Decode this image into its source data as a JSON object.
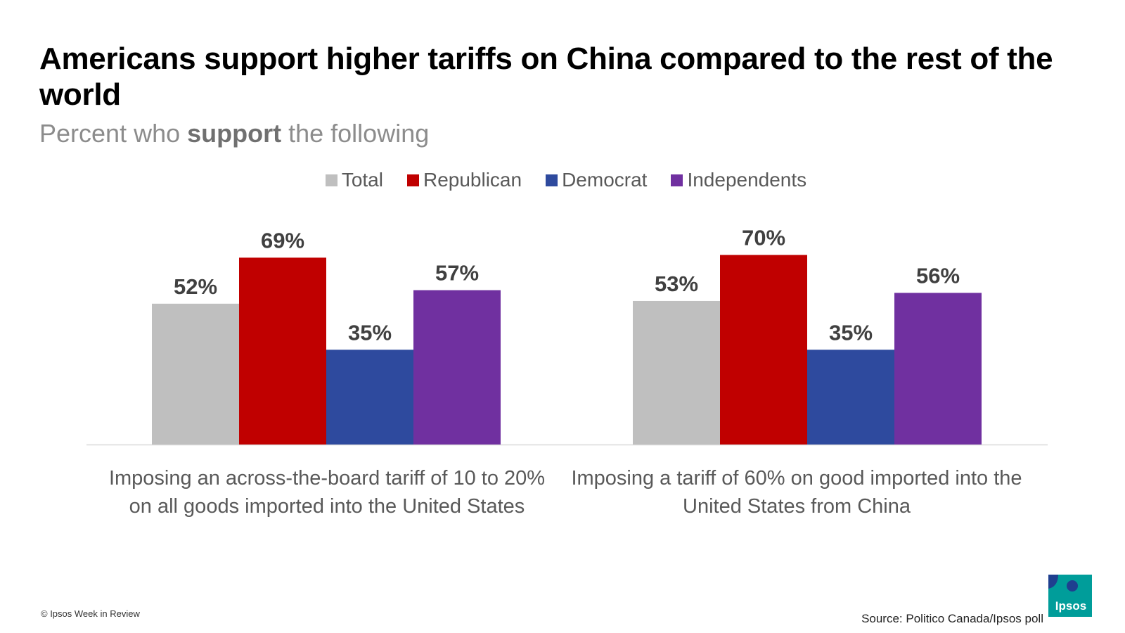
{
  "title": "Americans support higher tariffs on China compared to the rest of the world",
  "subtitle": {
    "pre": "Percent who ",
    "bold": "support",
    "post": " the following"
  },
  "legend": [
    {
      "label": "Total",
      "color": "#bfbfbf"
    },
    {
      "label": "Republican",
      "color": "#c00000"
    },
    {
      "label": "Democrat",
      "color": "#2e4a9e"
    },
    {
      "label": "Independents",
      "color": "#7030a0"
    }
  ],
  "chart_data": {
    "type": "bar",
    "categories": [
      "Imposing an across-the-board tariff of 10 to 20% on all goods imported into the United States",
      "Imposing a tariff of 60% on good imported into the United States from China"
    ],
    "series": [
      {
        "name": "Total",
        "values": [
          52,
          53
        ],
        "labels": [
          "52%",
          "53%"
        ],
        "color": "#bfbfbf"
      },
      {
        "name": "Republican",
        "values": [
          69,
          70
        ],
        "labels": [
          "69%",
          "70%"
        ],
        "color": "#c00000"
      },
      {
        "name": "Democrat",
        "values": [
          35,
          35
        ],
        "labels": [
          "35%",
          "35%"
        ],
        "color": "#2e4a9e"
      },
      {
        "name": "Independents",
        "values": [
          57,
          56
        ],
        "labels": [
          "57%",
          "56%"
        ],
        "color": "#7030a0"
      }
    ],
    "title": "Americans support higher tariffs on China compared to the rest of the world",
    "ylabel": "",
    "xlabel": "",
    "ylim": [
      0,
      70
    ],
    "grid": false,
    "legend_position": "top"
  },
  "footer": {
    "copyright": "© Ipsos Week in Review",
    "source": "Source: Politico Canada/Ipsos poll"
  },
  "logo": {
    "text": "Ipsos",
    "color": "#009d9a",
    "accent": "#1f3f8f"
  }
}
